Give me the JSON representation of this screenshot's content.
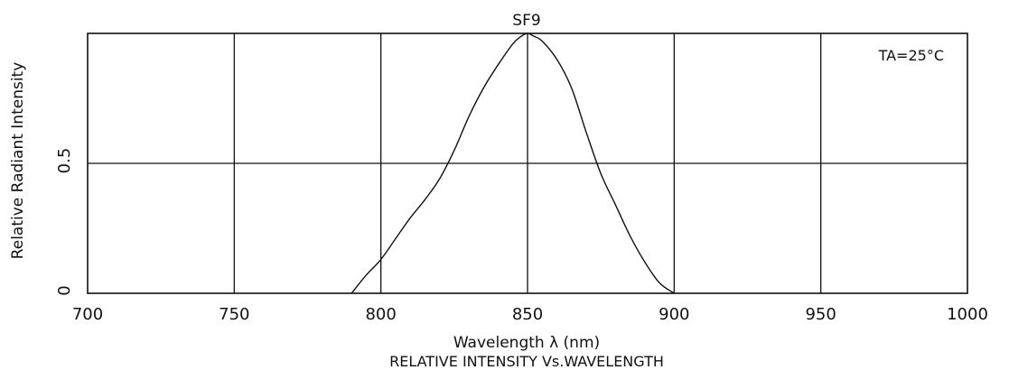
{
  "chart_data": {
    "type": "line",
    "title": "SF9",
    "subtitle": "RELATIVE  INTENSITY  Vs.WAVELENGTH",
    "xlabel": "Wavelength  λ (nm)",
    "ylabel": "Relative  Radiant  Intensity",
    "annotation": "TA=25°C",
    "xlim": [
      700,
      1000
    ],
    "ylim": [
      0,
      1
    ],
    "x_ticks": [
      700,
      750,
      800,
      850,
      900,
      950,
      1000
    ],
    "x_tick_labels": [
      "700",
      "750",
      "800",
      "850",
      "900",
      "950",
      "1000"
    ],
    "y_ticks": [
      0,
      0.5
    ],
    "y_tick_labels": [
      "0",
      "0.5"
    ],
    "grid": true,
    "line_color": "#111111",
    "series": [
      {
        "x": [
          790,
          795,
          800,
          805,
          810,
          815,
          820,
          825,
          830,
          835,
          840,
          845,
          848,
          850,
          852,
          855,
          860,
          865,
          870,
          875,
          880,
          885,
          890,
          895,
          900
        ],
        "y": [
          0,
          0.07,
          0.13,
          0.21,
          0.29,
          0.36,
          0.44,
          0.55,
          0.68,
          0.79,
          0.88,
          0.96,
          0.99,
          1.0,
          0.99,
          0.97,
          0.9,
          0.79,
          0.62,
          0.46,
          0.34,
          0.22,
          0.12,
          0.04,
          0
        ]
      }
    ]
  }
}
